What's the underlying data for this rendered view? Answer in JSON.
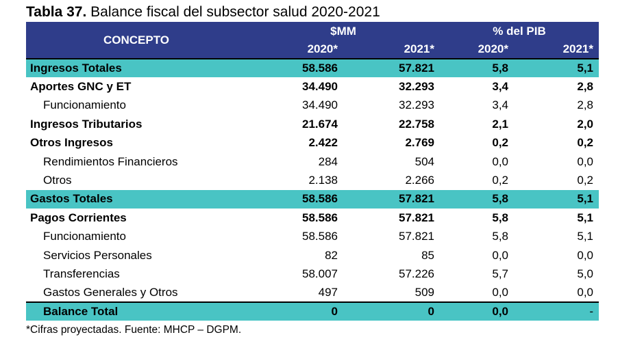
{
  "title": {
    "bold": "Tabla 37.",
    "rest": " Balance fiscal del subsector salud 2020-2021"
  },
  "header": {
    "concept": "CONCEPTO",
    "group1": "$MM",
    "group2": "% del PIB",
    "years": [
      "2020*",
      "2021*",
      "2020*",
      "2021*"
    ]
  },
  "rows": [
    {
      "label": "Ingresos Totales",
      "v": [
        "58.586",
        "57.821",
        "5,8",
        "5,1"
      ]
    },
    {
      "label": "Aportes GNC y ET",
      "v": [
        "34.490",
        "32.293",
        "3,4",
        "2,8"
      ]
    },
    {
      "label": "Funcionamiento",
      "v": [
        "34.490",
        "32.293",
        "3,4",
        "2,8"
      ]
    },
    {
      "label": "Ingresos Tributarios",
      "v": [
        "21.674",
        "22.758",
        "2,1",
        "2,0"
      ]
    },
    {
      "label": "Otros Ingresos",
      "v": [
        "2.422",
        "2.769",
        "0,2",
        "0,2"
      ]
    },
    {
      "label": "Rendimientos Financieros",
      "v": [
        "284",
        "504",
        "0,0",
        "0,0"
      ]
    },
    {
      "label": "Otros",
      "v": [
        "2.138",
        "2.266",
        "0,2",
        "0,2"
      ]
    },
    {
      "label": "Gastos Totales",
      "v": [
        "58.586",
        "57.821",
        "5,8",
        "5,1"
      ]
    },
    {
      "label": "Pagos Corrientes",
      "v": [
        "58.586",
        "57.821",
        "5,8",
        "5,1"
      ]
    },
    {
      "label": "Funcionamiento",
      "v": [
        "58.586",
        "57.821",
        "5,8",
        "5,1"
      ]
    },
    {
      "label": "Servicios Personales",
      "v": [
        "82",
        "85",
        "0,0",
        "0,0"
      ]
    },
    {
      "label": "Transferencias",
      "v": [
        "58.007",
        "57.226",
        "5,7",
        "5,0"
      ]
    },
    {
      "label": "Gastos Generales y Otros",
      "v": [
        "497",
        "509",
        "0,0",
        "0,0"
      ]
    },
    {
      "label": "Balance Total",
      "v": [
        "0",
        "0",
        "0,0",
        "-"
      ]
    }
  ],
  "footnote": "*Cifras proyectadas. Fuente: MHCP – DGPM.",
  "colors": {
    "header_bg": "#2f3d8a",
    "highlight_bg": "#49c4c4"
  }
}
